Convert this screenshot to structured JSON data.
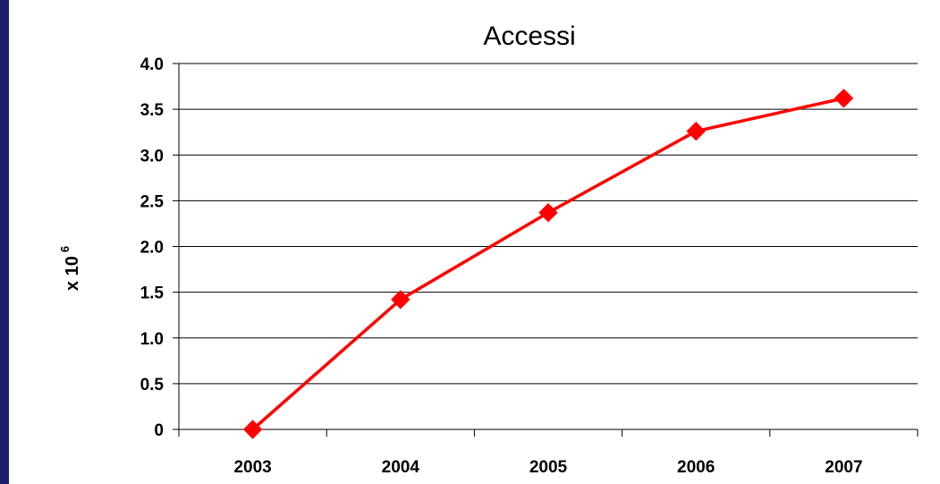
{
  "chart_data": {
    "type": "line",
    "title": "Accessi",
    "xlabel": "",
    "ylabel": {
      "base": "x 10",
      "exponent": "6"
    },
    "categories": [
      "2003",
      "2004",
      "2005",
      "2006",
      "2007"
    ],
    "series": [
      {
        "values": [
          0.0,
          1.42,
          2.37,
          3.26,
          3.62
        ],
        "color": "#ff0000",
        "marker": "diamond"
      }
    ],
    "ylim": [
      0,
      4.0
    ],
    "yticks": [
      {
        "value": 0,
        "label": "0"
      },
      {
        "value": 0.5,
        "label": "0.5"
      },
      {
        "value": 1.0,
        "label": "1.0"
      },
      {
        "value": 1.5,
        "label": "1.5"
      },
      {
        "value": 2.0,
        "label": "2.0"
      },
      {
        "value": 2.5,
        "label": "2.5"
      },
      {
        "value": 3.0,
        "label": "3.0"
      },
      {
        "value": 3.5,
        "label": "3.5"
      },
      {
        "value": 4.0,
        "label": "4.0"
      }
    ],
    "grid": true,
    "legend": "none"
  },
  "colors": {
    "background_border": "#1a1f6e",
    "plot_background": "#ffffff",
    "line": "#ff0000",
    "gridline": "#000000"
  }
}
